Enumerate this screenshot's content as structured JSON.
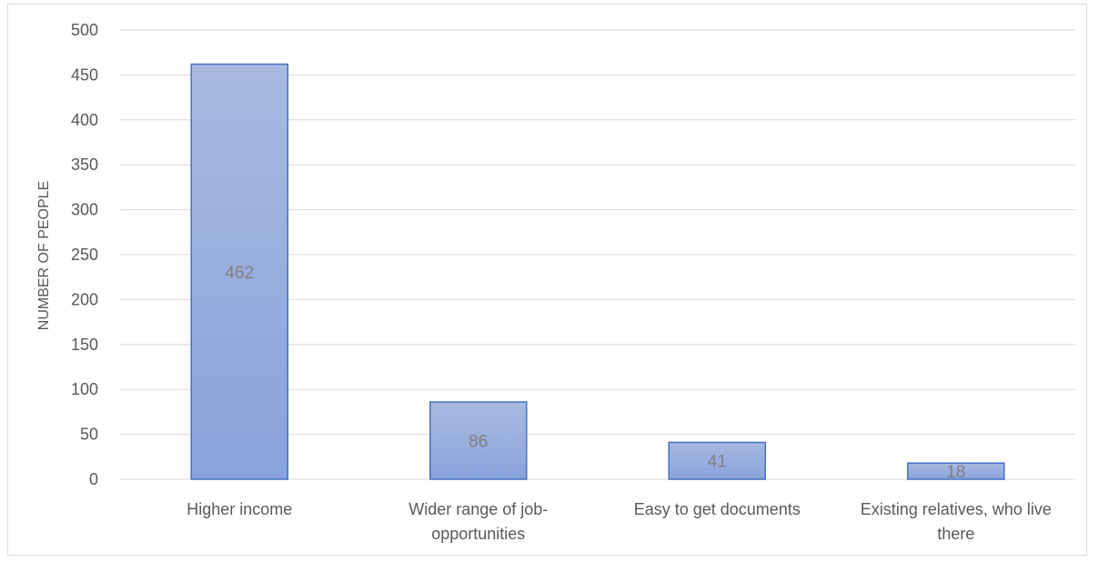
{
  "chart_data": {
    "type": "bar",
    "categories": [
      [
        "Higher income"
      ],
      [
        "Wider range of job-",
        "opportunities"
      ],
      [
        "Easy to get documents"
      ],
      [
        "Existing relatives, who live",
        "there"
      ]
    ],
    "values": [
      462,
      86,
      41,
      18
    ],
    "data_labels": [
      "462",
      "86",
      "41",
      "18"
    ],
    "title": "",
    "xlabel": "",
    "ylabel": "NUMBER OF PEOPLE",
    "ylim": [
      0,
      500
    ],
    "yticks": [
      0,
      50,
      100,
      150,
      200,
      250,
      300,
      350,
      400,
      450,
      500
    ],
    "grid": true,
    "legend": "none",
    "colors": {
      "bar_fill_top": "#a9b9e0",
      "bar_fill_bottom": "#8aa3dc",
      "bar_stroke": "#4472c4",
      "grid": "#d9d9d9",
      "text": "#595959",
      "data_label": "#7f7f7f"
    }
  }
}
